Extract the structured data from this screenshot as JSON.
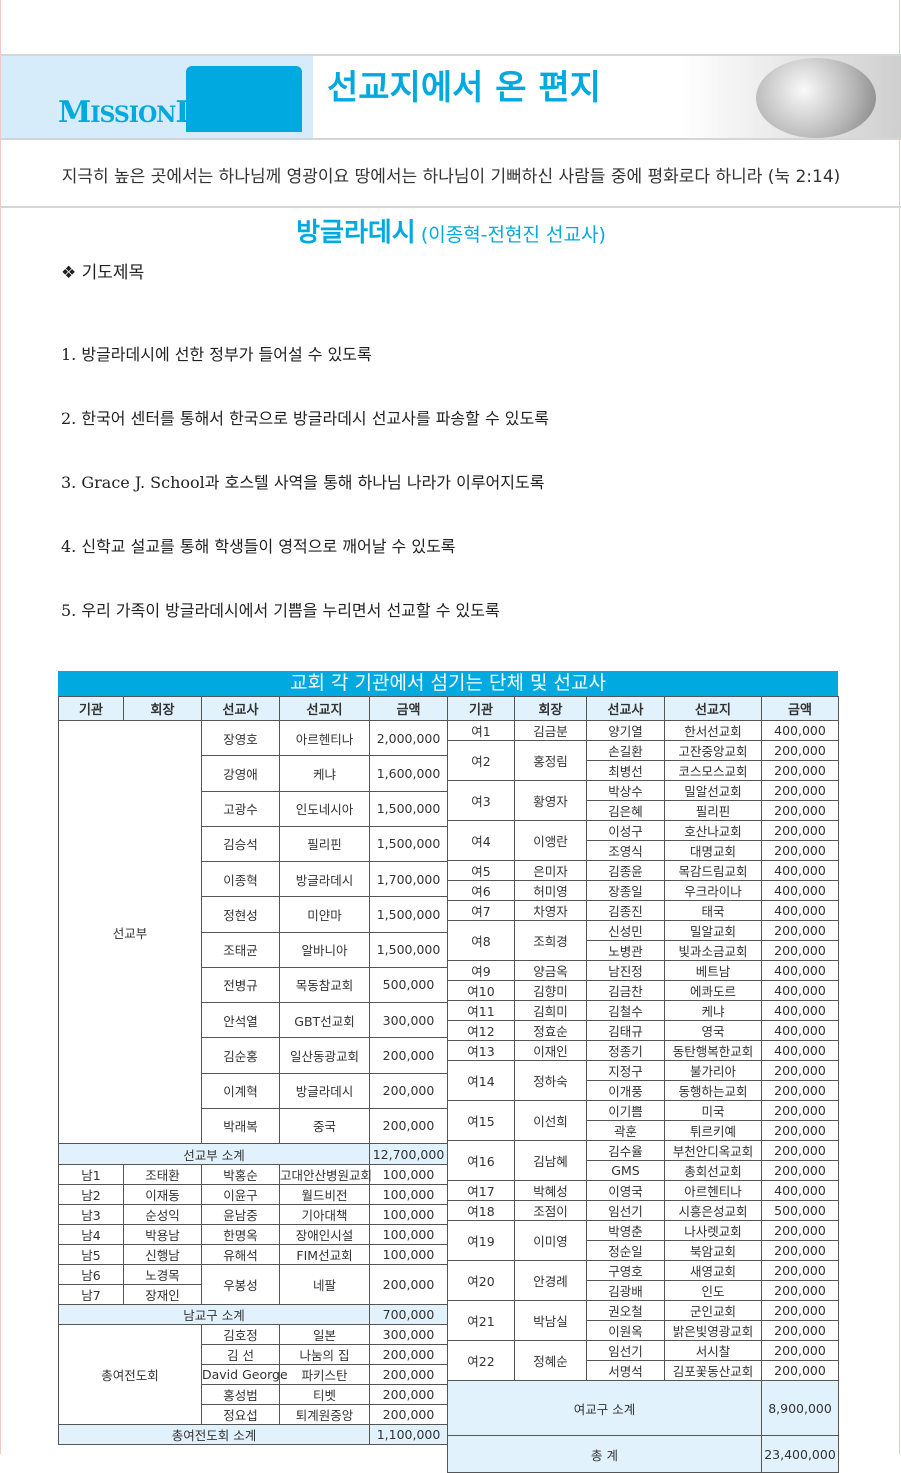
{
  "header": {
    "logo_text": "MISSION LETTER",
    "title": "선교지에서 온 편지"
  },
  "verse": "지극히 높은 곳에서는 하나님께 영광이요 땅에서는 하나님이 기뻐하신 사람들 중에 평화로다 하니라 (눅 2:14)",
  "country": {
    "name": "방글라데시",
    "missionaries": "(이종혁-전현진 선교사)"
  },
  "prayer": {
    "heading": "❖ 기도제목",
    "items": [
      "1. 방글라데시에 선한 정부가 들어설 수 있도록",
      "2. 한국어 센터를 통해서 한국으로 방글라데시 선교사를 파송할 수 있도록",
      "3. Grace J. School과 호스텔 사역을 통해 하나님 나라가 이루어지도록",
      "4. 신학교 설교를 통해 학생들이 영적으로 깨어날 수 있도록",
      "5. 우리 가족이 방글라데시에서 기쁨을 누리면서 선교할 수 있도록"
    ]
  },
  "table": {
    "title": "교회 각 기관에서 섬기는 단체 및 선교사",
    "columns": [
      "기관",
      "회장",
      "선교사",
      "선교지",
      "금액"
    ],
    "seongyobu": {
      "label": "선교부",
      "rows": [
        [
          "장영호",
          "아르헨티나",
          "2,000,000"
        ],
        [
          "강영애",
          "케냐",
          "1,600,000"
        ],
        [
          "고광수",
          "인도네시아",
          "1,500,000"
        ],
        [
          "김승석",
          "필리핀",
          "1,500,000"
        ],
        [
          "이종혁",
          "방글라데시",
          "1,700,000"
        ],
        [
          "정현성",
          "미얀마",
          "1,500,000"
        ],
        [
          "조태균",
          "알바니아",
          "1,500,000"
        ],
        [
          "전병규",
          "목동참교회",
          "500,000"
        ],
        [
          "안석열",
          "GBT선교회",
          "300,000"
        ],
        [
          "김순홍",
          "일산동광교회",
          "200,000"
        ],
        [
          "이계혁",
          "방글라데시",
          "200,000"
        ],
        [
          "박래복",
          "중국",
          "200,000"
        ]
      ],
      "subtotal_label": "선교부 소계",
      "subtotal": "12,700,000"
    },
    "namgyogu": {
      "rows": [
        [
          "남1",
          "조태환",
          "박홍순",
          "고대안산병원교회",
          "100,000"
        ],
        [
          "남2",
          "이재동",
          "이윤구",
          "월드비전",
          "100,000"
        ],
        [
          "남3",
          "순성익",
          "윤남중",
          "기아대책",
          "100,000"
        ],
        [
          "남4",
          "박용남",
          "한명옥",
          "장애인시설",
          "100,000"
        ],
        [
          "남5",
          "신행남",
          "유해석",
          "FIM선교회",
          "100,000"
        ]
      ],
      "shared": {
        "orgs": [
          [
            "남6",
            "노경목"
          ],
          [
            "남7",
            "장재인"
          ]
        ],
        "missionary": "우봉성",
        "place": "네팔",
        "amount": "200,000"
      },
      "subtotal_label": "남교구 소계",
      "subtotal": "700,000"
    },
    "yeojeondohoe": {
      "label": "총여전도회",
      "rows": [
        [
          "김호정",
          "일본",
          "300,000"
        ],
        [
          "김  선",
          "나눔의 집",
          "200,000"
        ],
        [
          "David George",
          "파키스탄",
          "200,000"
        ],
        [
          "홍성범",
          "티벳",
          "200,000"
        ],
        [
          "정요섭",
          "퇴계원중앙",
          "200,000"
        ]
      ],
      "subtotal_label": "총여전도회 소계",
      "subtotal": "1,100,000"
    },
    "yeogyogu": {
      "groups": [
        {
          "org": "여1",
          "chair": "김금분",
          "entries": [
            [
              "양기열",
              "한서선교회",
              "400,000"
            ]
          ]
        },
        {
          "org": "여2",
          "chair": "홍정림",
          "entries": [
            [
              "손길환",
              "고잔중앙교회",
              "200,000"
            ],
            [
              "최병선",
              "코스모스교회",
              "200,000"
            ]
          ]
        },
        {
          "org": "여3",
          "chair": "황영자",
          "entries": [
            [
              "박상수",
              "밀알선교회",
              "200,000"
            ],
            [
              "김은혜",
              "필리핀",
              "200,000"
            ]
          ]
        },
        {
          "org": "여4",
          "chair": "이앵란",
          "entries": [
            [
              "이성구",
              "호산나교회",
              "200,000"
            ],
            [
              "조영식",
              "대명교회",
              "200,000"
            ]
          ]
        },
        {
          "org": "여5",
          "chair": "은미자",
          "entries": [
            [
              "김종윤",
              "목감드림교회",
              "400,000"
            ]
          ]
        },
        {
          "org": "여6",
          "chair": "허미영",
          "entries": [
            [
              "장종일",
              "우크라이나",
              "400,000"
            ]
          ]
        },
        {
          "org": "여7",
          "chair": "차영자",
          "entries": [
            [
              "김종진",
              "태국",
              "400,000"
            ]
          ]
        },
        {
          "org": "여8",
          "chair": "조희경",
          "entries": [
            [
              "신성민",
              "밀알교회",
              "200,000"
            ],
            [
              "노병관",
              "빛과소금교회",
              "200,000"
            ]
          ]
        },
        {
          "org": "여9",
          "chair": "양금옥",
          "entries": [
            [
              "남진정",
              "베트남",
              "400,000"
            ]
          ]
        },
        {
          "org": "여10",
          "chair": "김향미",
          "entries": [
            [
              "김금찬",
              "에콰도르",
              "400,000"
            ]
          ]
        },
        {
          "org": "여11",
          "chair": "김희미",
          "entries": [
            [
              "김철수",
              "케냐",
              "400,000"
            ]
          ]
        },
        {
          "org": "여12",
          "chair": "정효순",
          "entries": [
            [
              "김태규",
              "영국",
              "400,000"
            ]
          ]
        },
        {
          "org": "여13",
          "chair": "이재인",
          "entries": [
            [
              "정종기",
              "동탄행복한교회",
              "400,000"
            ]
          ]
        },
        {
          "org": "여14",
          "chair": "정하숙",
          "entries": [
            [
              "지정구",
              "불가리아",
              "200,000"
            ],
            [
              "이개풍",
              "동행하는교회",
              "200,000"
            ]
          ]
        },
        {
          "org": "여15",
          "chair": "이선희",
          "entries": [
            [
              "이기쁨",
              "미국",
              "200,000"
            ],
            [
              "곽훈",
              "튀르키예",
              "200,000"
            ]
          ]
        },
        {
          "org": "여16",
          "chair": "김남혜",
          "entries": [
            [
              "김수율",
              "부천안디옥교회",
              "200,000"
            ],
            [
              "GMS",
              "총회선교회",
              "200,000"
            ]
          ]
        },
        {
          "org": "여17",
          "chair": "박혜성",
          "entries": [
            [
              "이영국",
              "아르헨티나",
              "400,000"
            ]
          ]
        },
        {
          "org": "여18",
          "chair": "조점이",
          "entries": [
            [
              "임선기",
              "시흥은성교회",
              "500,000"
            ]
          ]
        },
        {
          "org": "여19",
          "chair": "이미영",
          "entries": [
            [
              "박영춘",
              "나사렛교회",
              "200,000"
            ],
            [
              "정순일",
              "북암교회",
              "200,000"
            ]
          ]
        },
        {
          "org": "여20",
          "chair": "안경례",
          "entries": [
            [
              "구영호",
              "새영교회",
              "200,000"
            ],
            [
              "김광배",
              "인도",
              "200,000"
            ]
          ]
        },
        {
          "org": "여21",
          "chair": "박남실",
          "entries": [
            [
              "권오철",
              "군인교회",
              "200,000"
            ],
            [
              "이원옥",
              "밝은빛영광교회",
              "200,000"
            ]
          ]
        },
        {
          "org": "여22",
          "chair": "정혜순",
          "entries": [
            [
              "임선기",
              "서시찰",
              "200,000"
            ],
            [
              "서명석",
              "김포꽃동산교회",
              "200,000"
            ]
          ]
        }
      ],
      "subtotal_label": "여교구 소계",
      "subtotal": "8,900,000"
    },
    "total_label": "총 계",
    "total": "23,400,000"
  },
  "colors": {
    "accent": "#00a9e0",
    "header_bg": "#e2f2fc"
  }
}
